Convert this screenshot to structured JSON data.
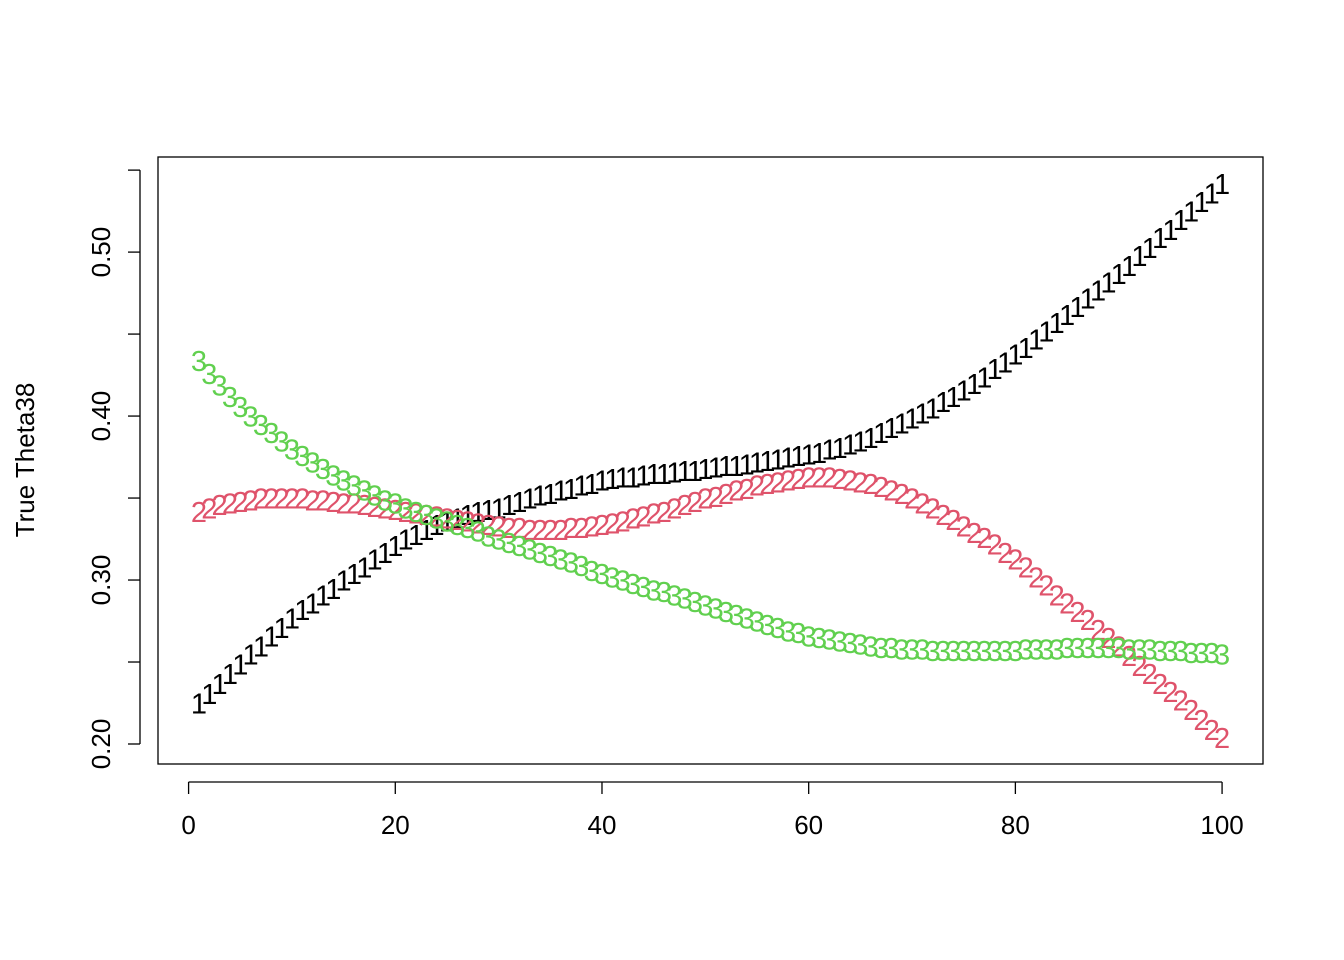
{
  "chart_data": {
    "type": "scatter",
    "y_label": "True Theta38",
    "xlim": [
      -2.96,
      103.96
    ],
    "ylim": [
      0.1878,
      0.558
    ],
    "xticks": [
      0,
      20,
      40,
      60,
      80,
      100
    ],
    "yticks": [
      {
        "value": 0.2,
        "label": "0.20"
      },
      {
        "value": 0.25,
        "label": null
      },
      {
        "value": 0.3,
        "label": "0.30"
      },
      {
        "value": 0.35,
        "label": null
      },
      {
        "value": 0.4,
        "label": "0.40"
      },
      {
        "value": 0.45,
        "label": null
      },
      {
        "value": 0.5,
        "label": "0.50"
      },
      {
        "value": 0.55,
        "label": null
      }
    ],
    "x": [
      1,
      2,
      3,
      4,
      5,
      6,
      7,
      8,
      9,
      10,
      11,
      12,
      13,
      14,
      15,
      16,
      17,
      18,
      19,
      20,
      21,
      22,
      23,
      24,
      25,
      26,
      27,
      28,
      29,
      30,
      31,
      32,
      33,
      34,
      35,
      36,
      37,
      38,
      39,
      40,
      41,
      42,
      43,
      44,
      45,
      46,
      47,
      48,
      49,
      50,
      51,
      52,
      53,
      54,
      55,
      56,
      57,
      58,
      59,
      60,
      61,
      62,
      63,
      64,
      65,
      66,
      67,
      68,
      69,
      70,
      71,
      72,
      73,
      74,
      75,
      76,
      77,
      78,
      79,
      80,
      81,
      82,
      83,
      84,
      85,
      86,
      87,
      88,
      89,
      90,
      91,
      92,
      93,
      94,
      95,
      96,
      97,
      98,
      99,
      100
    ],
    "series": [
      {
        "name": "1",
        "color": "#000000",
        "values": [
          0.224,
          0.23,
          0.236,
          0.242,
          0.248,
          0.254,
          0.259,
          0.265,
          0.27,
          0.276,
          0.281,
          0.285,
          0.29,
          0.294,
          0.299,
          0.303,
          0.307,
          0.312,
          0.316,
          0.32,
          0.324,
          0.327,
          0.33,
          0.333,
          0.335,
          0.337,
          0.339,
          0.341,
          0.342,
          0.343,
          0.345,
          0.347,
          0.349,
          0.351,
          0.352,
          0.354,
          0.355,
          0.357,
          0.358,
          0.36,
          0.361,
          0.362,
          0.362,
          0.363,
          0.364,
          0.364,
          0.365,
          0.366,
          0.366,
          0.367,
          0.368,
          0.369,
          0.369,
          0.37,
          0.371,
          0.372,
          0.373,
          0.374,
          0.375,
          0.376,
          0.377,
          0.379,
          0.38,
          0.382,
          0.384,
          0.386,
          0.389,
          0.392,
          0.395,
          0.398,
          0.401,
          0.404,
          0.408,
          0.411,
          0.415,
          0.419,
          0.423,
          0.428,
          0.432,
          0.437,
          0.441,
          0.446,
          0.451,
          0.456,
          0.461,
          0.466,
          0.471,
          0.476,
          0.481,
          0.486,
          0.491,
          0.497,
          0.502,
          0.508,
          0.513,
          0.519,
          0.524,
          0.53,
          0.535,
          0.541
        ]
      },
      {
        "name": "2",
        "color": "#DF536B",
        "values": [
          0.341,
          0.343,
          0.345,
          0.346,
          0.347,
          0.348,
          0.349,
          0.349,
          0.349,
          0.349,
          0.349,
          0.348,
          0.348,
          0.347,
          0.346,
          0.346,
          0.345,
          0.344,
          0.343,
          0.342,
          0.341,
          0.34,
          0.339,
          0.338,
          0.337,
          0.336,
          0.335,
          0.334,
          0.333,
          0.332,
          0.331,
          0.331,
          0.33,
          0.33,
          0.33,
          0.33,
          0.331,
          0.331,
          0.332,
          0.333,
          0.334,
          0.335,
          0.337,
          0.338,
          0.34,
          0.341,
          0.343,
          0.345,
          0.347,
          0.349,
          0.35,
          0.352,
          0.354,
          0.355,
          0.357,
          0.358,
          0.359,
          0.36,
          0.361,
          0.362,
          0.362,
          0.362,
          0.361,
          0.36,
          0.359,
          0.358,
          0.356,
          0.354,
          0.352,
          0.349,
          0.346,
          0.343,
          0.339,
          0.336,
          0.332,
          0.328,
          0.325,
          0.321,
          0.316,
          0.312,
          0.307,
          0.301,
          0.296,
          0.29,
          0.285,
          0.28,
          0.275,
          0.269,
          0.264,
          0.259,
          0.253,
          0.247,
          0.242,
          0.236,
          0.231,
          0.226,
          0.22,
          0.214,
          0.208,
          0.203
        ]
      },
      {
        "name": "3",
        "color": "#61D04F",
        "values": [
          0.433,
          0.425,
          0.418,
          0.411,
          0.405,
          0.399,
          0.394,
          0.389,
          0.384,
          0.379,
          0.375,
          0.371,
          0.367,
          0.363,
          0.36,
          0.357,
          0.354,
          0.351,
          0.348,
          0.346,
          0.343,
          0.341,
          0.339,
          0.337,
          0.335,
          0.333,
          0.331,
          0.329,
          0.326,
          0.324,
          0.322,
          0.32,
          0.318,
          0.316,
          0.314,
          0.312,
          0.31,
          0.308,
          0.305,
          0.303,
          0.301,
          0.299,
          0.297,
          0.295,
          0.293,
          0.292,
          0.29,
          0.288,
          0.286,
          0.284,
          0.282,
          0.28,
          0.278,
          0.276,
          0.274,
          0.272,
          0.27,
          0.268,
          0.267,
          0.265,
          0.264,
          0.263,
          0.262,
          0.261,
          0.26,
          0.259,
          0.258,
          0.258,
          0.257,
          0.257,
          0.257,
          0.256,
          0.256,
          0.256,
          0.256,
          0.256,
          0.256,
          0.256,
          0.256,
          0.256,
          0.257,
          0.257,
          0.257,
          0.257,
          0.258,
          0.258,
          0.258,
          0.258,
          0.258,
          0.258,
          0.257,
          0.257,
          0.257,
          0.256,
          0.256,
          0.256,
          0.255,
          0.255,
          0.255,
          0.254
        ]
      }
    ]
  }
}
